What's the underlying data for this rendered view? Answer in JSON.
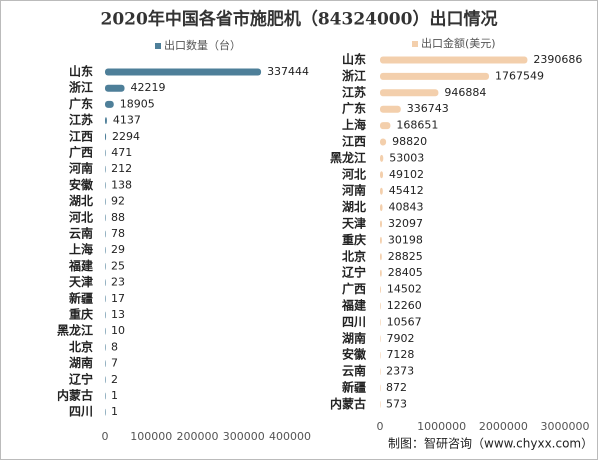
{
  "title": "2020年中国各省市施肥机（84324000）出口情况",
  "source": "制图：智研咨询（www.chyxx.com）",
  "chart_data": [
    {
      "type": "bar",
      "orientation": "horizontal",
      "categories": [
        "山东",
        "浙江",
        "广东",
        "江苏",
        "江西",
        "广西",
        "河南",
        "安徽",
        "湖北",
        "河北",
        "云南",
        "上海",
        "福建",
        "天津",
        "新疆",
        "重庆",
        "黑龙江",
        "北京",
        "湖南",
        "辽宁",
        "内蒙古",
        "四川"
      ],
      "series": [
        {
          "name": "出口数量（台）",
          "color": "#4e7f99",
          "values": [
            337444,
            42219,
            18905,
            4137,
            2294,
            471,
            212,
            138,
            92,
            88,
            78,
            29,
            25,
            23,
            17,
            13,
            10,
            8,
            7,
            2,
            1,
            1
          ]
        }
      ],
      "xlim": [
        0,
        400000
      ],
      "xticks": [
        0,
        100000,
        200000,
        300000,
        400000
      ]
    },
    {
      "type": "bar",
      "orientation": "horizontal",
      "categories": [
        "山东",
        "浙江",
        "江苏",
        "广东",
        "上海",
        "江西",
        "黑龙江",
        "河北",
        "河南",
        "湖北",
        "天津",
        "重庆",
        "北京",
        "辽宁",
        "广西",
        "福建",
        "四川",
        "湖南",
        "安徽",
        "云南",
        "新疆",
        "内蒙古"
      ],
      "series": [
        {
          "name": "出口金额(美元)",
          "color": "#f3cfac",
          "values": [
            2390686,
            1767549,
            946884,
            336743,
            168651,
            98820,
            53003,
            49102,
            45412,
            40843,
            32097,
            30198,
            28825,
            28405,
            14502,
            12260,
            10567,
            7902,
            7128,
            2373,
            872,
            573
          ]
        }
      ],
      "xlim": [
        0,
        3000000
      ],
      "xticks": [
        0,
        1000000,
        2000000,
        3000000
      ]
    }
  ]
}
